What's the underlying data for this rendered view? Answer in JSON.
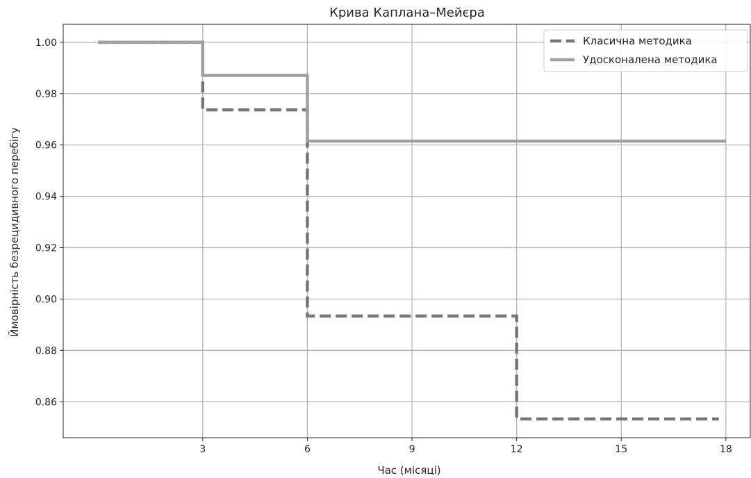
{
  "chart_data": {
    "type": "line",
    "step": "post",
    "title": "Крива Каплана–Мейєра",
    "xlabel": "Час (місяці)",
    "ylabel": "Ймовірність безрецидивного перебігу",
    "xlim": [
      -1,
      18.7
    ],
    "ylim": [
      0.846,
      1.007
    ],
    "xticks": [
      3,
      6,
      9,
      12,
      15,
      18
    ],
    "yticks": [
      0.86,
      0.88,
      0.9,
      0.92,
      0.94,
      0.96,
      0.98,
      1.0
    ],
    "xtick_labels": [
      "3",
      "6",
      "9",
      "12",
      "15",
      "18"
    ],
    "ytick_labels": [
      "0.86",
      "0.88",
      "0.90",
      "0.92",
      "0.94",
      "0.96",
      "0.98",
      "1.00"
    ],
    "grid": true,
    "legend_position": "top-right",
    "series": [
      {
        "name": "Класична методика",
        "style": "dashed",
        "color": "#777777",
        "x": [
          0,
          3,
          6,
          12,
          17.8
        ],
        "y": [
          1.0,
          0.9737,
          0.8934,
          0.8533,
          0.8533
        ]
      },
      {
        "name": "Удосконалена методика",
        "style": "solid",
        "color": "#a0a0a0",
        "x": [
          0,
          3,
          6,
          18
        ],
        "y": [
          1.0,
          0.9871,
          0.9615,
          0.9615
        ]
      }
    ]
  }
}
